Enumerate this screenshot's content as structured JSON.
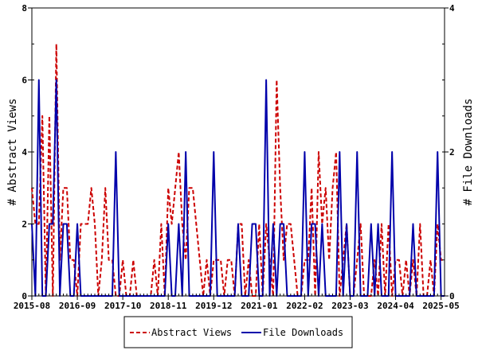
{
  "chart_data": {
    "type": "line",
    "title": "",
    "ylabel_left": "# Abstract Views",
    "ylabel_right": "# File Downloads",
    "ylim_left": [
      0,
      8
    ],
    "ylim_right": [
      0,
      4
    ],
    "yticks_left": [
      "0",
      "2",
      "4",
      "6",
      "8"
    ],
    "yticks_right": [
      "0",
      "2",
      "4"
    ],
    "x_tick_labels": [
      "2015-08",
      "2016-09",
      "2017-10",
      "2018-11",
      "2019-12",
      "2021-01",
      "2022-02",
      "2023-03",
      "2024-04",
      "2025-05"
    ],
    "x_tick_index": [
      0,
      13,
      26,
      39,
      52,
      65,
      78,
      91,
      104,
      117
    ],
    "n_points": 119,
    "legend_position": "bottom-center",
    "grid": false,
    "series": [
      {
        "name": "Abstract Views",
        "axis": "left",
        "color": "#cc0000",
        "style": "dashed",
        "values": [
          3,
          2,
          2,
          5,
          0,
          5,
          0,
          7,
          1,
          3,
          3,
          1,
          1,
          0,
          2,
          2,
          2,
          3,
          2,
          0,
          1,
          3,
          1,
          1,
          0,
          0,
          1,
          0,
          0,
          1,
          0,
          0,
          0,
          0,
          0,
          1,
          0,
          2,
          0,
          3,
          2,
          3,
          4,
          2,
          1,
          3,
          3,
          2,
          1,
          0,
          1,
          0,
          1,
          1,
          1,
          0,
          1,
          1,
          0,
          2,
          2,
          0,
          1,
          0,
          0,
          2,
          0,
          2,
          1,
          0,
          6,
          3,
          1,
          2,
          2,
          1,
          0,
          0,
          1,
          1,
          3,
          0,
          4,
          2,
          3,
          1,
          3,
          4,
          0,
          1,
          2,
          0,
          0,
          1,
          2,
          0,
          0,
          0,
          1,
          0,
          2,
          0,
          2,
          0,
          1,
          1,
          0,
          1,
          0,
          1,
          0,
          2,
          0,
          0,
          1,
          0,
          2,
          1,
          1
        ]
      },
      {
        "name": "File Downloads",
        "axis": "right",
        "color": "#0000aa",
        "style": "solid",
        "values": [
          1,
          0,
          3,
          0,
          0,
          1,
          1,
          3,
          0,
          1,
          1,
          0,
          0,
          1,
          0,
          0,
          0,
          0,
          0,
          0,
          0,
          0,
          0,
          0,
          2,
          0,
          0,
          0,
          0,
          0,
          0,
          0,
          0,
          0,
          0,
          0,
          0,
          0,
          0,
          1,
          0,
          0,
          1,
          0,
          2,
          0,
          0,
          0,
          0,
          0,
          0,
          0,
          2,
          0,
          0,
          0,
          0,
          0,
          0,
          1,
          0,
          0,
          0,
          1,
          1,
          0,
          0,
          3,
          0,
          1,
          0,
          1,
          1,
          0,
          0,
          0,
          0,
          0,
          2,
          0,
          1,
          1,
          0,
          1,
          0,
          0,
          0,
          0,
          2,
          0,
          1,
          0,
          0,
          2,
          0,
          0,
          0,
          1,
          0,
          1,
          0,
          0,
          0,
          2,
          0,
          0,
          0,
          0,
          0,
          1,
          0,
          0,
          0,
          0,
          0,
          0,
          2,
          0,
          0
        ]
      }
    ]
  }
}
